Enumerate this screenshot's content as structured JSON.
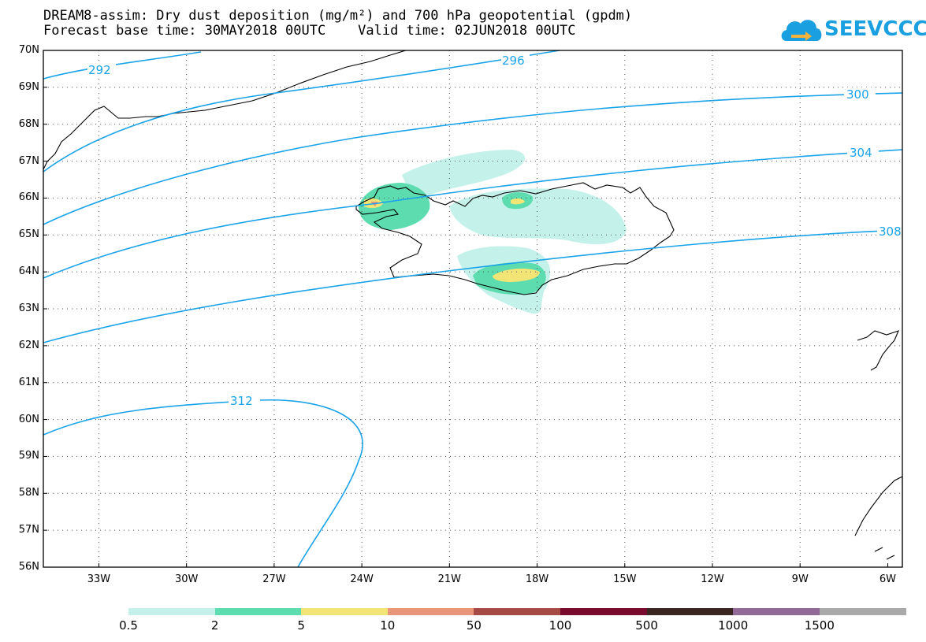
{
  "title": {
    "line1": "DREAM8-assim: Dry dust deposition (mg/m²) and 700 hPa geopotential (gpdm)",
    "line2": "Forecast base time: 30MAY2018 00UTC    Valid time: 02JUN2018 00UTC"
  },
  "logo": {
    "text": "SEEVCCC",
    "icon": "cloud-arrow-icon",
    "color": "#1a9fe0"
  },
  "axes": {
    "lat_labels": [
      "70N",
      "69N",
      "68N",
      "67N",
      "66N",
      "65N",
      "64N",
      "63N",
      "62N",
      "61N",
      "60N",
      "59N",
      "58N",
      "57N",
      "56N"
    ],
    "lon_labels": [
      "33W",
      "30W",
      "27W",
      "24W",
      "21W",
      "18W",
      "15W",
      "12W",
      "9W",
      "6W"
    ],
    "lat_range": [
      56,
      70
    ],
    "lon_range": [
      -34.9,
      -5.5
    ],
    "grid": "dotted"
  },
  "contours": {
    "variable": "700 hPa geopotential (gpdm)",
    "color": "#1aa3e8",
    "labels": [
      "292",
      "296",
      "300",
      "304",
      "308",
      "312"
    ]
  },
  "colorbar": {
    "levels": [
      "0.5",
      "2",
      "5",
      "10",
      "50",
      "100",
      "500",
      "1000",
      "1500"
    ],
    "colors": [
      "#c4f2ea",
      "#5ddcb0",
      "#f2e576",
      "#e8957a",
      "#a64a46",
      "#780a2e",
      "#3a2620",
      "#916a98",
      "#a9a9a9"
    ]
  }
}
